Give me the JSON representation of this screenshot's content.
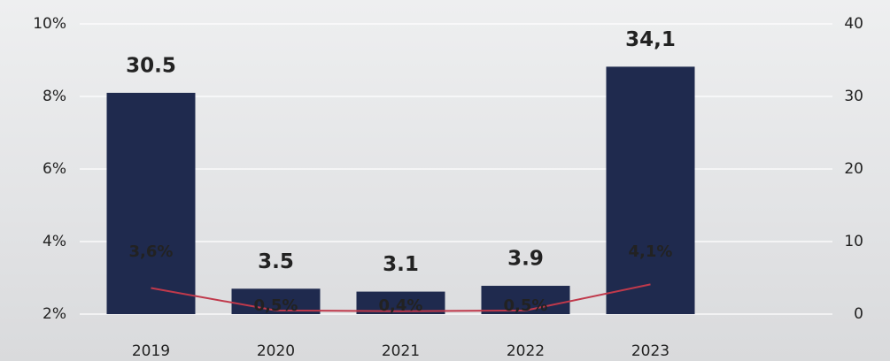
{
  "chart_data": {
    "type": "bar_line",
    "categories": [
      "2019",
      "2020",
      "2021",
      "2022",
      "2023"
    ],
    "series": [
      {
        "type": "bar",
        "axis": "y2",
        "color": "#1f2a4e",
        "values": [
          30.5,
          3.5,
          3.1,
          3.9,
          34.1
        ],
        "value_labels": [
          "30.5",
          "3.5",
          "3.1",
          "3.9",
          "34,1"
        ],
        "label_color": "#c0283a"
      },
      {
        "type": "line",
        "axis": "y2",
        "color": "#c0394b",
        "values": [
          3.6,
          0.5,
          0.4,
          0.5,
          4.1
        ],
        "value_labels": [
          "3,6%",
          "0,5%",
          "0,4%",
          "0,5%",
          "4,1%"
        ],
        "label_color": "#ffffff"
      }
    ],
    "ylim": [
      2,
      10
    ],
    "yticks": [
      {
        "value": 2,
        "label": "2%"
      },
      {
        "value": 4,
        "label": "4%"
      },
      {
        "value": 6,
        "label": "6%"
      },
      {
        "value": 8,
        "label": "8%"
      },
      {
        "value": 10,
        "label": "10%"
      }
    ],
    "y2lim": [
      0,
      40
    ],
    "y2ticks": [
      0,
      10,
      20,
      30,
      40
    ],
    "grid": true
  }
}
